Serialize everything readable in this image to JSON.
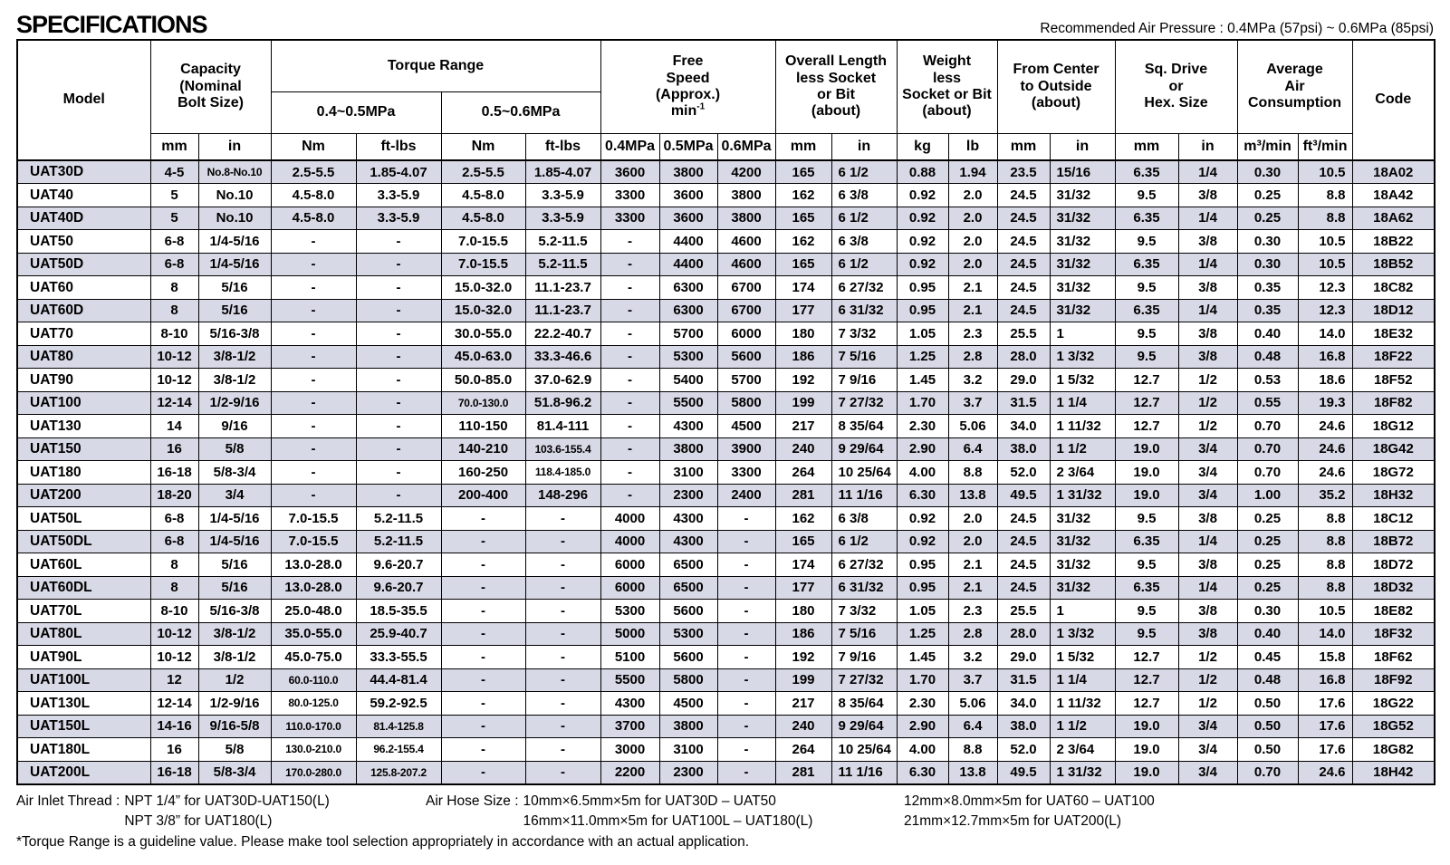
{
  "page": {
    "title": "SPECIFICATIONS",
    "pressure_note": "Recommended Air Pressure : 0.4MPa (57psi) ~ 0.6MPa (85psi)"
  },
  "table": {
    "headers": {
      "model": "Model",
      "capacity": "Capacity\n(Nominal\nBolt Size)",
      "torque_range": "Torque Range",
      "torque_sub_low": "0.4~0.5MPa",
      "torque_sub_high": "0.5~0.6MPa",
      "free_speed": "Free\nSpeed\n(Approx.)",
      "free_speed_unit_base": "min",
      "free_speed_unit_sup": "-1",
      "overall_length": "Overall Length\nless Socket\nor Bit\n(about)",
      "weight": "Weight\nless\nSocket or Bit\n(about)",
      "from_center": "From Center\nto Outside\n(about)",
      "sq_drive": "Sq. Drive\nor\nHex. Size",
      "air_consumption": "Average\nAir\nConsumption",
      "code": "Code"
    },
    "units": [
      "mm",
      "in",
      "Nm",
      "ft-lbs",
      "Nm",
      "ft-lbs",
      "0.4MPa",
      "0.5MPa",
      "0.6MPa",
      "mm",
      "in",
      "kg",
      "lb",
      "mm",
      "in",
      "mm",
      "in",
      "m³/min",
      "ft³/min"
    ],
    "rows": [
      [
        "UAT30D",
        "4-5",
        "No.8-No.10",
        "2.5-5.5",
        "1.85-4.07",
        "2.5-5.5",
        "1.85-4.07",
        "3600",
        "3800",
        "4200",
        "165",
        "6 1/2",
        "0.88",
        "1.94",
        "23.5",
        "15/16",
        "6.35",
        "1/4",
        "0.30",
        "10.5",
        "18A02"
      ],
      [
        "UAT40",
        "5",
        "No.10",
        "4.5-8.0",
        "3.3-5.9",
        "4.5-8.0",
        "3.3-5.9",
        "3300",
        "3600",
        "3800",
        "162",
        "6 3/8",
        "0.92",
        "2.0",
        "24.5",
        "31/32",
        "9.5",
        "3/8",
        "0.25",
        "8.8",
        "18A42"
      ],
      [
        "UAT40D",
        "5",
        "No.10",
        "4.5-8.0",
        "3.3-5.9",
        "4.5-8.0",
        "3.3-5.9",
        "3300",
        "3600",
        "3800",
        "165",
        "6 1/2",
        "0.92",
        "2.0",
        "24.5",
        "31/32",
        "6.35",
        "1/4",
        "0.25",
        "8.8",
        "18A62"
      ],
      [
        "UAT50",
        "6-8",
        "1/4-5/16",
        "-",
        "-",
        "7.0-15.5",
        "5.2-11.5",
        "-",
        "4400",
        "4600",
        "162",
        "6 3/8",
        "0.92",
        "2.0",
        "24.5",
        "31/32",
        "9.5",
        "3/8",
        "0.30",
        "10.5",
        "18B22"
      ],
      [
        "UAT50D",
        "6-8",
        "1/4-5/16",
        "-",
        "-",
        "7.0-15.5",
        "5.2-11.5",
        "-",
        "4400",
        "4600",
        "165",
        "6 1/2",
        "0.92",
        "2.0",
        "24.5",
        "31/32",
        "6.35",
        "1/4",
        "0.30",
        "10.5",
        "18B52"
      ],
      [
        "UAT60",
        "8",
        "5/16",
        "-",
        "-",
        "15.0-32.0",
        "11.1-23.7",
        "-",
        "6300",
        "6700",
        "174",
        "6 27/32",
        "0.95",
        "2.1",
        "24.5",
        "31/32",
        "9.5",
        "3/8",
        "0.35",
        "12.3",
        "18C82"
      ],
      [
        "UAT60D",
        "8",
        "5/16",
        "-",
        "-",
        "15.0-32.0",
        "11.1-23.7",
        "-",
        "6300",
        "6700",
        "177",
        "6 31/32",
        "0.95",
        "2.1",
        "24.5",
        "31/32",
        "6.35",
        "1/4",
        "0.35",
        "12.3",
        "18D12"
      ],
      [
        "UAT70",
        "8-10",
        "5/16-3/8",
        "-",
        "-",
        "30.0-55.0",
        "22.2-40.7",
        "-",
        "5700",
        "6000",
        "180",
        "7 3/32",
        "1.05",
        "2.3",
        "25.5",
        "1",
        "9.5",
        "3/8",
        "0.40",
        "14.0",
        "18E32"
      ],
      [
        "UAT80",
        "10-12",
        "3/8-1/2",
        "-",
        "-",
        "45.0-63.0",
        "33.3-46.6",
        "-",
        "5300",
        "5600",
        "186",
        "7 5/16",
        "1.25",
        "2.8",
        "28.0",
        "1 3/32",
        "9.5",
        "3/8",
        "0.48",
        "16.8",
        "18F22"
      ],
      [
        "UAT90",
        "10-12",
        "3/8-1/2",
        "-",
        "-",
        "50.0-85.0",
        "37.0-62.9",
        "-",
        "5400",
        "5700",
        "192",
        "7 9/16",
        "1.45",
        "3.2",
        "29.0",
        "1 5/32",
        "12.7",
        "1/2",
        "0.53",
        "18.6",
        "18F52"
      ],
      [
        "UAT100",
        "12-14",
        "1/2-9/16",
        "-",
        "-",
        "70.0-130.0",
        "51.8-96.2",
        "-",
        "5500",
        "5800",
        "199",
        "7 27/32",
        "1.70",
        "3.7",
        "31.5",
        "1 1/4",
        "12.7",
        "1/2",
        "0.55",
        "19.3",
        "18F82"
      ],
      [
        "UAT130",
        "14",
        "9/16",
        "-",
        "-",
        "110-150",
        "81.4-111",
        "-",
        "4300",
        "4500",
        "217",
        "8 35/64",
        "2.30",
        "5.06",
        "34.0",
        "1 11/32",
        "12.7",
        "1/2",
        "0.70",
        "24.6",
        "18G12"
      ],
      [
        "UAT150",
        "16",
        "5/8",
        "-",
        "-",
        "140-210",
        "103.6-155.4",
        "-",
        "3800",
        "3900",
        "240",
        "9 29/64",
        "2.90",
        "6.4",
        "38.0",
        "1 1/2",
        "19.0",
        "3/4",
        "0.70",
        "24.6",
        "18G42"
      ],
      [
        "UAT180",
        "16-18",
        "5/8-3/4",
        "-",
        "-",
        "160-250",
        "118.4-185.0",
        "-",
        "3100",
        "3300",
        "264",
        "10 25/64",
        "4.00",
        "8.8",
        "52.0",
        "2 3/64",
        "19.0",
        "3/4",
        "0.70",
        "24.6",
        "18G72"
      ],
      [
        "UAT200",
        "18-20",
        "3/4",
        "-",
        "-",
        "200-400",
        "148-296",
        "-",
        "2300",
        "2400",
        "281",
        "11 1/16",
        "6.30",
        "13.8",
        "49.5",
        "1 31/32",
        "19.0",
        "3/4",
        "1.00",
        "35.2",
        "18H32"
      ],
      [
        "UAT50L",
        "6-8",
        "1/4-5/16",
        "7.0-15.5",
        "5.2-11.5",
        "-",
        "-",
        "4000",
        "4300",
        "-",
        "162",
        "6 3/8",
        "0.92",
        "2.0",
        "24.5",
        "31/32",
        "9.5",
        "3/8",
        "0.25",
        "8.8",
        "18C12"
      ],
      [
        "UAT50DL",
        "6-8",
        "1/4-5/16",
        "7.0-15.5",
        "5.2-11.5",
        "-",
        "-",
        "4000",
        "4300",
        "-",
        "165",
        "6 1/2",
        "0.92",
        "2.0",
        "24.5",
        "31/32",
        "6.35",
        "1/4",
        "0.25",
        "8.8",
        "18B72"
      ],
      [
        "UAT60L",
        "8",
        "5/16",
        "13.0-28.0",
        "9.6-20.7",
        "-",
        "-",
        "6000",
        "6500",
        "-",
        "174",
        "6 27/32",
        "0.95",
        "2.1",
        "24.5",
        "31/32",
        "9.5",
        "3/8",
        "0.25",
        "8.8",
        "18D72"
      ],
      [
        "UAT60DL",
        "8",
        "5/16",
        "13.0-28.0",
        "9.6-20.7",
        "-",
        "-",
        "6000",
        "6500",
        "-",
        "177",
        "6 31/32",
        "0.95",
        "2.1",
        "24.5",
        "31/32",
        "6.35",
        "1/4",
        "0.25",
        "8.8",
        "18D32"
      ],
      [
        "UAT70L",
        "8-10",
        "5/16-3/8",
        "25.0-48.0",
        "18.5-35.5",
        "-",
        "-",
        "5300",
        "5600",
        "-",
        "180",
        "7 3/32",
        "1.05",
        "2.3",
        "25.5",
        "1",
        "9.5",
        "3/8",
        "0.30",
        "10.5",
        "18E82"
      ],
      [
        "UAT80L",
        "10-12",
        "3/8-1/2",
        "35.0-55.0",
        "25.9-40.7",
        "-",
        "-",
        "5000",
        "5300",
        "-",
        "186",
        "7 5/16",
        "1.25",
        "2.8",
        "28.0",
        "1 3/32",
        "9.5",
        "3/8",
        "0.40",
        "14.0",
        "18F32"
      ],
      [
        "UAT90L",
        "10-12",
        "3/8-1/2",
        "45.0-75.0",
        "33.3-55.5",
        "-",
        "-",
        "5100",
        "5600",
        "-",
        "192",
        "7 9/16",
        "1.45",
        "3.2",
        "29.0",
        "1 5/32",
        "12.7",
        "1/2",
        "0.45",
        "15.8",
        "18F62"
      ],
      [
        "UAT100L",
        "12",
        "1/2",
        "60.0-110.0",
        "44.4-81.4",
        "-",
        "-",
        "5500",
        "5800",
        "-",
        "199",
        "7 27/32",
        "1.70",
        "3.7",
        "31.5",
        "1 1/4",
        "12.7",
        "1/2",
        "0.48",
        "16.8",
        "18F92"
      ],
      [
        "UAT130L",
        "12-14",
        "1/2-9/16",
        "80.0-125.0",
        "59.2-92.5",
        "-",
        "-",
        "4300",
        "4500",
        "-",
        "217",
        "8 35/64",
        "2.30",
        "5.06",
        "34.0",
        "1 11/32",
        "12.7",
        "1/2",
        "0.50",
        "17.6",
        "18G22"
      ],
      [
        "UAT150L",
        "14-16",
        "9/16-5/8",
        "110.0-170.0",
        "81.4-125.8",
        "-",
        "-",
        "3700",
        "3800",
        "-",
        "240",
        "9 29/64",
        "2.90",
        "6.4",
        "38.0",
        "1 1/2",
        "19.0",
        "3/4",
        "0.50",
        "17.6",
        "18G52"
      ],
      [
        "UAT180L",
        "16",
        "5/8",
        "130.0-210.0",
        "96.2-155.4",
        "-",
        "-",
        "3000",
        "3100",
        "-",
        "264",
        "10 25/64",
        "4.00",
        "8.8",
        "52.0",
        "2 3/64",
        "19.0",
        "3/4",
        "0.50",
        "17.6",
        "18G82"
      ],
      [
        "UAT200L",
        "16-18",
        "5/8-3/4",
        "170.0-280.0",
        "125.8-207.2",
        "-",
        "-",
        "2200",
        "2300",
        "-",
        "281",
        "11 1/16",
        "6.30",
        "13.8",
        "49.5",
        "1 31/32",
        "19.0",
        "3/4",
        "0.70",
        "24.6",
        "18H42"
      ]
    ]
  },
  "footer": {
    "air_inlet": {
      "label": "Air Inlet Thread :",
      "line1": "NPT 1/4” for UAT30D-UAT150(L)",
      "line2": "NPT 3/8” for UAT180(L)"
    },
    "air_hose": {
      "label": "Air Hose Size :",
      "col1_line1": "10mm×6.5mm×5m for UAT30D – UAT50",
      "col1_line2": "16mm×11.0mm×5m for UAT100L – UAT180(L)",
      "col2_line1": "12mm×8.0mm×5m for UAT60 – UAT100",
      "col2_line2": "21mm×12.7mm×5m for UAT200(L)"
    },
    "note": "*Torque Range is a guideline value. Please make tool selection appropriately in accordance with an actual application."
  }
}
